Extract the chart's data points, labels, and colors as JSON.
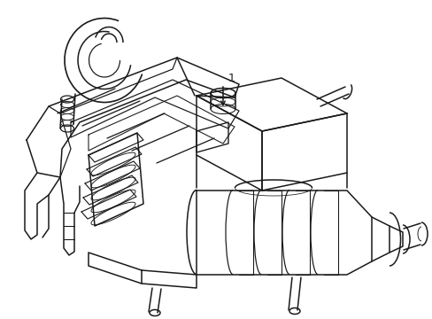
{
  "background_color": "#ffffff",
  "line_color": "#1a1a1a",
  "line_width": 1.1,
  "label_text": "1",
  "label_fontsize": 9,
  "fig_width": 4.89,
  "fig_height": 3.6,
  "dpi": 100
}
